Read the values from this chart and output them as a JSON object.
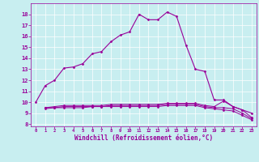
{
  "xlabel": "Windchill (Refroidissement éolien,°C)",
  "bg_color": "#c8eef0",
  "line_color": "#990099",
  "xlim": [
    -0.5,
    23.5
  ],
  "ylim": [
    7.8,
    19.0
  ],
  "yticks": [
    8,
    9,
    10,
    11,
    12,
    13,
    14,
    15,
    16,
    17,
    18
  ],
  "xticks": [
    0,
    1,
    2,
    3,
    4,
    5,
    6,
    7,
    8,
    9,
    10,
    11,
    12,
    13,
    14,
    15,
    16,
    17,
    18,
    19,
    20,
    21,
    22,
    23
  ],
  "curve1_x": [
    0,
    1,
    2,
    3,
    4,
    5,
    6,
    7,
    8,
    9,
    10,
    11,
    12,
    13,
    14,
    15,
    16,
    17,
    18,
    19,
    20,
    21,
    22,
    23
  ],
  "curve1_y": [
    10.0,
    11.5,
    12.0,
    13.1,
    13.2,
    13.5,
    14.4,
    14.6,
    15.5,
    16.1,
    16.4,
    18.0,
    17.5,
    17.5,
    18.2,
    17.8,
    15.2,
    13.0,
    12.8,
    10.2,
    10.2,
    9.6,
    9.3,
    9.0
  ],
  "curve2_x": [
    1,
    2,
    3,
    4,
    5,
    6,
    7,
    8,
    9,
    10,
    11,
    12,
    13,
    14,
    15,
    16,
    17,
    18,
    19,
    20,
    21,
    22,
    23
  ],
  "curve2_y": [
    9.5,
    9.6,
    9.7,
    9.7,
    9.7,
    9.7,
    9.7,
    9.8,
    9.8,
    9.8,
    9.8,
    9.8,
    9.8,
    9.9,
    9.9,
    9.9,
    9.9,
    9.7,
    9.6,
    10.1,
    9.6,
    9.3,
    8.6
  ],
  "curve3_x": [
    1,
    2,
    3,
    4,
    5,
    6,
    7,
    8,
    9,
    10,
    11,
    12,
    13,
    14,
    15,
    16,
    17,
    18,
    19,
    20,
    21,
    22,
    23
  ],
  "curve3_y": [
    9.5,
    9.5,
    9.6,
    9.6,
    9.6,
    9.6,
    9.6,
    9.7,
    9.7,
    9.7,
    9.7,
    9.7,
    9.7,
    9.8,
    9.8,
    9.8,
    9.8,
    9.6,
    9.5,
    9.5,
    9.4,
    9.0,
    8.5
  ],
  "curve4_x": [
    1,
    2,
    3,
    4,
    5,
    6,
    7,
    8,
    9,
    10,
    11,
    12,
    13,
    14,
    15,
    16,
    17,
    18,
    19,
    20,
    21,
    22,
    23
  ],
  "curve4_y": [
    9.4,
    9.5,
    9.5,
    9.5,
    9.5,
    9.6,
    9.6,
    9.6,
    9.6,
    9.6,
    9.6,
    9.6,
    9.6,
    9.7,
    9.7,
    9.7,
    9.7,
    9.5,
    9.4,
    9.3,
    9.2,
    8.8,
    8.4
  ]
}
